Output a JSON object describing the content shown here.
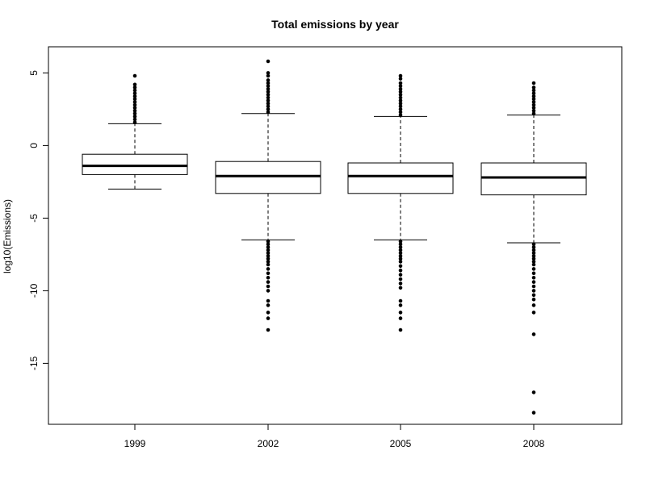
{
  "chart_data": {
    "type": "box",
    "title": "Total emissions by year",
    "xlabel": "",
    "ylabel": "log10(Emissions)",
    "ylim": [
      -19.2,
      6.8
    ],
    "yticks": [
      5,
      0,
      -5,
      -10,
      -15
    ],
    "ytick_labels": [
      "5",
      "0",
      "-5",
      "-10",
      "-15"
    ],
    "grid": false,
    "categories": [
      "1999",
      "2002",
      "2005",
      "2008"
    ],
    "series": [
      {
        "category": "1999",
        "whisker_low": -3.0,
        "q1": -2.0,
        "median": -1.4,
        "q3": -0.6,
        "whisker_high": 1.5,
        "outliers_high": [
          1.6,
          1.8,
          2.0,
          2.2,
          2.4,
          2.6,
          2.8,
          3.0,
          3.2,
          3.4,
          3.6,
          3.8,
          4.0,
          4.2,
          4.8
        ],
        "outliers_low": []
      },
      {
        "category": "2002",
        "whisker_low": -6.5,
        "q1": -3.3,
        "median": -2.1,
        "q3": -1.1,
        "whisker_high": 2.2,
        "outliers_high": [
          2.3,
          2.5,
          2.7,
          2.9,
          3.1,
          3.3,
          3.5,
          3.7,
          3.9,
          4.1,
          4.3,
          4.5,
          4.8,
          5.0,
          5.8
        ],
        "outliers_low": [
          -6.6,
          -6.8,
          -7.0,
          -7.2,
          -7.4,
          -7.6,
          -7.8,
          -8.0,
          -8.2,
          -8.5,
          -8.8,
          -9.1,
          -9.4,
          -9.7,
          -10.0,
          -10.7,
          -11.0,
          -11.5,
          -11.9,
          -12.7
        ]
      },
      {
        "category": "2005",
        "whisker_low": -6.5,
        "q1": -3.3,
        "median": -2.1,
        "q3": -1.2,
        "whisker_high": 2.0,
        "outliers_high": [
          2.1,
          2.3,
          2.5,
          2.7,
          2.9,
          3.1,
          3.3,
          3.5,
          3.7,
          3.9,
          4.1,
          4.3,
          4.6,
          4.8
        ],
        "outliers_low": [
          -6.6,
          -6.8,
          -7.0,
          -7.2,
          -7.4,
          -7.6,
          -7.8,
          -8.0,
          -8.3,
          -8.6,
          -8.9,
          -9.2,
          -9.5,
          -9.8,
          -10.7,
          -11.0,
          -11.5,
          -11.9,
          -12.7
        ]
      },
      {
        "category": "2008",
        "whisker_low": -6.7,
        "q1": -3.4,
        "median": -2.2,
        "q3": -1.2,
        "whisker_high": 2.1,
        "outliers_high": [
          2.2,
          2.4,
          2.6,
          2.8,
          3.0,
          3.2,
          3.4,
          3.6,
          3.8,
          4.0,
          4.3
        ],
        "outliers_low": [
          -6.8,
          -7.0,
          -7.2,
          -7.4,
          -7.6,
          -7.8,
          -8.0,
          -8.2,
          -8.5,
          -8.8,
          -9.1,
          -9.4,
          -9.7,
          -10.0,
          -10.3,
          -10.6,
          -11.0,
          -11.5,
          -13.0,
          -17.0,
          -18.4
        ]
      }
    ]
  }
}
